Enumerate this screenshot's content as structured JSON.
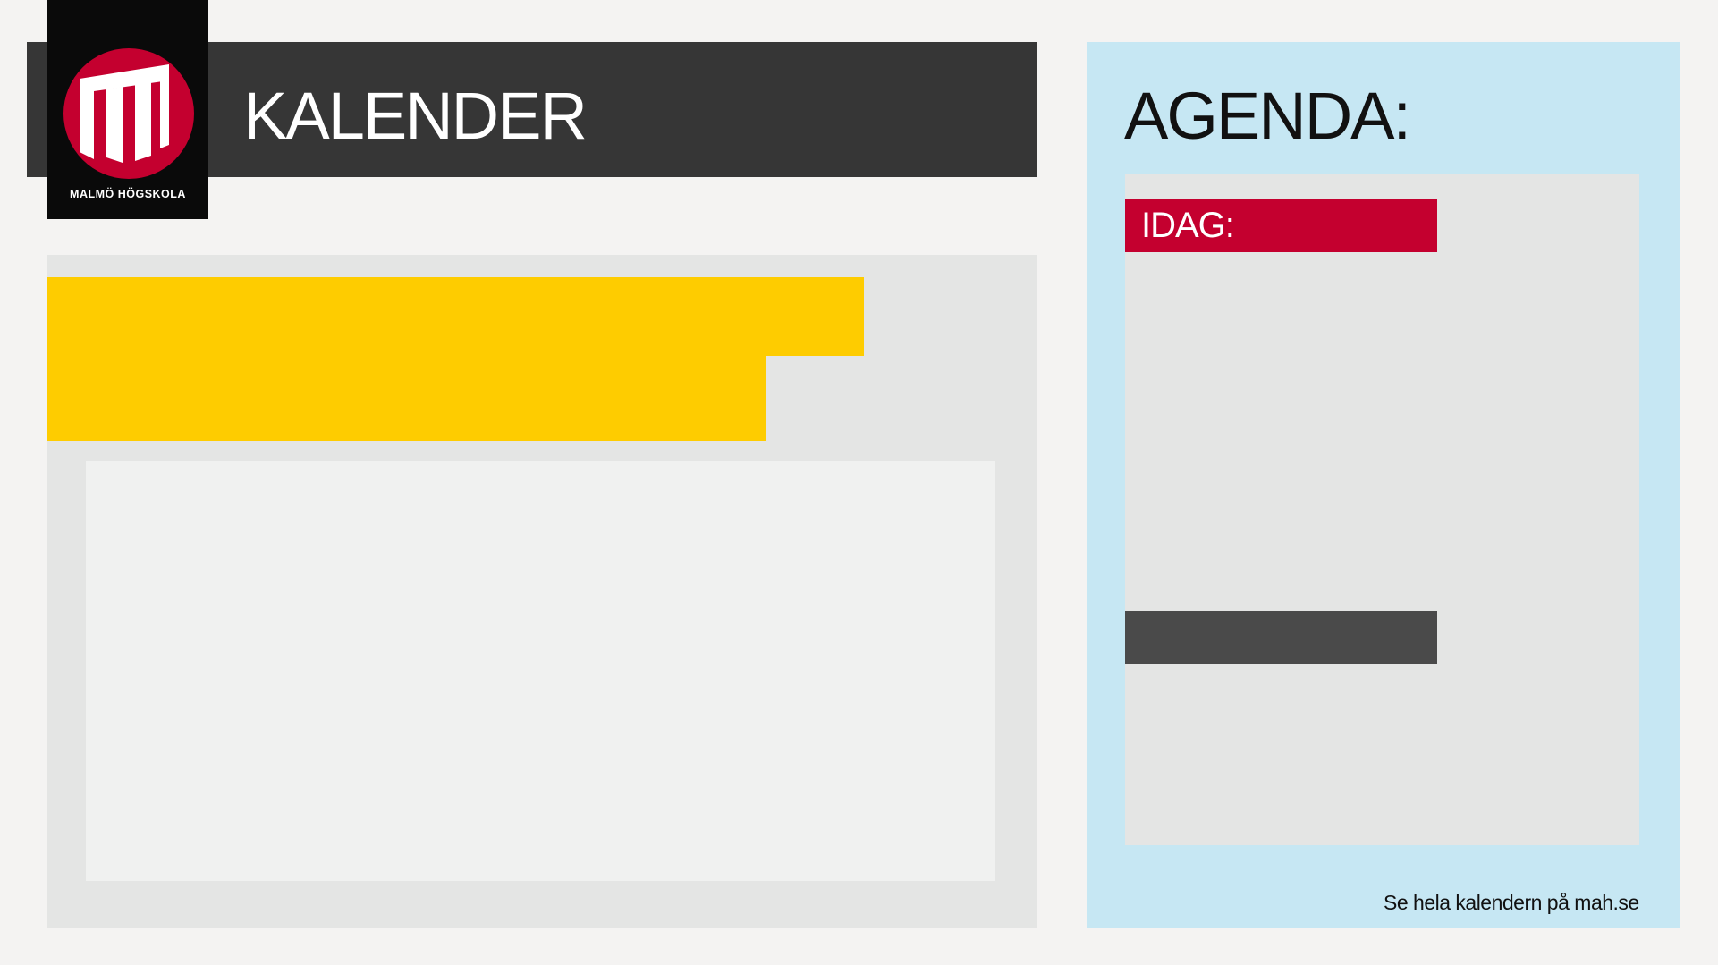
{
  "header": {
    "title": "KALENDER"
  },
  "logo": {
    "icon": "malmo-hogskola-logo-icon",
    "text": "MALMÖ HÖGSKOLA"
  },
  "agenda": {
    "title": "AGENDA:",
    "today_label": "IDAG:"
  },
  "footer": {
    "link_text": "Se hela kalendern på mah.se"
  },
  "colors": {
    "background": "#f4f3f2",
    "header_bar": "#363636",
    "logo_red": "#c4002f",
    "yellow": "#fecc00",
    "agenda_blue": "#c6e7f3",
    "panel_gray": "#e4e5e4",
    "dark_bar": "#4a4a4a"
  }
}
